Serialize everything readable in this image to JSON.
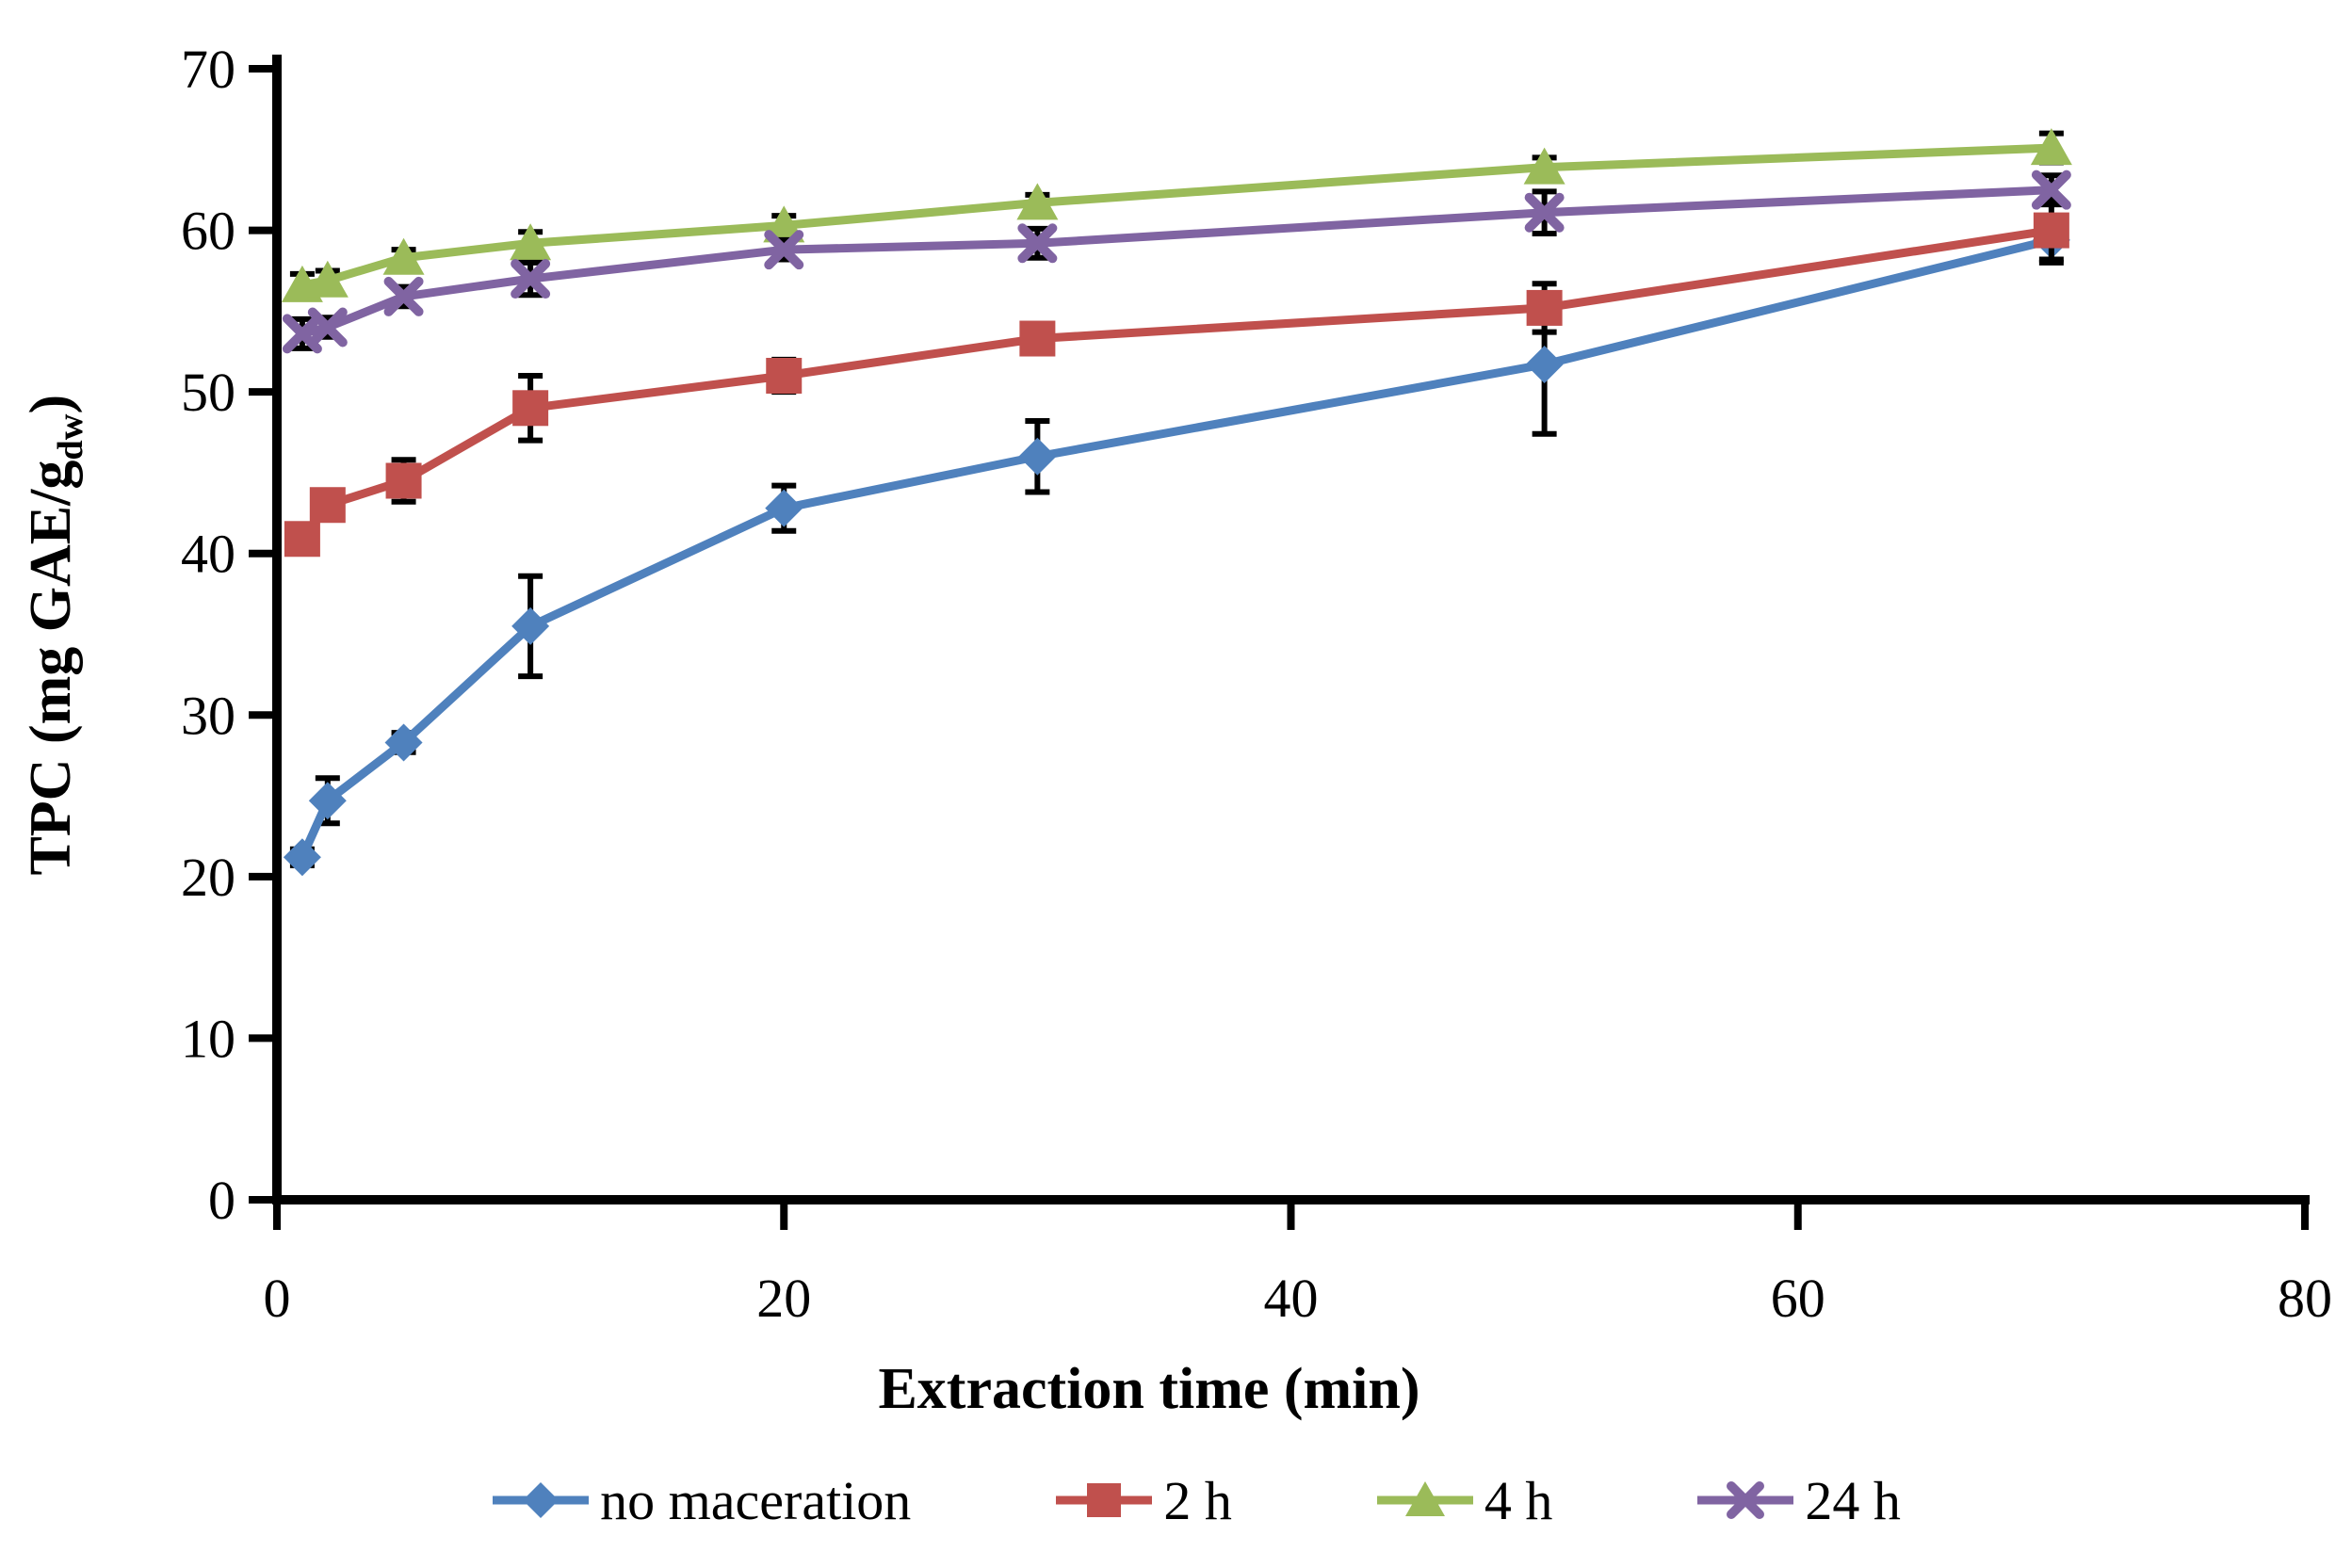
{
  "chart_data": {
    "type": "line",
    "title": "",
    "xlabel": "Extraction time (min)",
    "ylabel": "TPC (mg GAE/gdw)",
    "ylabel_parts": {
      "main": "TPC (mg GAE/g",
      "sub": "dw",
      "close": ")"
    },
    "xlim": [
      0,
      80
    ],
    "ylim": [
      0,
      70
    ],
    "xticks": [
      0,
      20,
      40,
      60,
      80
    ],
    "yticks": [
      0,
      10,
      20,
      30,
      40,
      50,
      60,
      70
    ],
    "grid": false,
    "legend_position": "bottom",
    "axis_color": "#000000",
    "error_bar_color": "#000000",
    "x": [
      1,
      2,
      5,
      10,
      20,
      30,
      50,
      70
    ],
    "series": [
      {
        "name": "no maceration",
        "marker": "diamond",
        "color": "#4F81BD",
        "values": [
          21.2,
          24.7,
          28.3,
          35.5,
          42.8,
          46.0,
          51.7,
          59.4
        ],
        "errors": [
          0.5,
          1.4,
          0.6,
          3.1,
          1.4,
          2.2,
          4.3,
          1.4
        ]
      },
      {
        "name": "2 h",
        "marker": "square",
        "color": "#C0504D",
        "values": [
          40.9,
          43.0,
          44.5,
          49.0,
          51.0,
          53.3,
          55.2,
          60.0
        ],
        "errors": [
          0.6,
          0.7,
          1.3,
          2.0,
          1.0,
          0.7,
          1.5,
          1.8
        ]
      },
      {
        "name": "4 h",
        "marker": "triangle",
        "color": "#9BBB59",
        "values": [
          56.6,
          56.9,
          58.3,
          59.2,
          60.3,
          61.7,
          63.9,
          65.1
        ],
        "errors": [
          0.7,
          0.6,
          0.5,
          0.7,
          0.6,
          0.5,
          0.6,
          0.9
        ]
      },
      {
        "name": "24 h",
        "marker": "x",
        "color": "#8064A2",
        "values": [
          53.6,
          54.0,
          55.9,
          57.0,
          58.8,
          59.2,
          61.1,
          62.5
        ],
        "errors": [
          0.9,
          0.6,
          0.6,
          1.0,
          0.6,
          0.9,
          1.3,
          0.9
        ]
      }
    ]
  }
}
